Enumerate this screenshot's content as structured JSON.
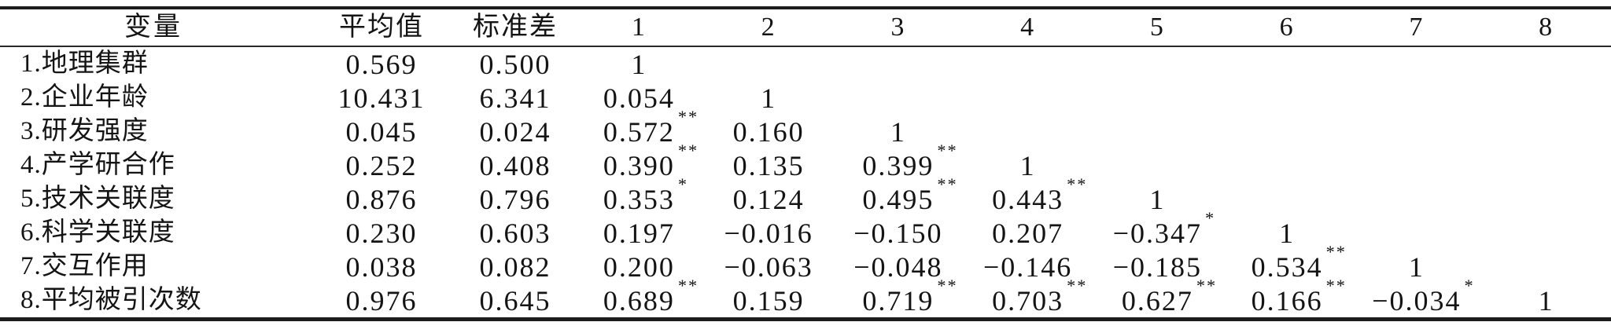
{
  "table": {
    "kind": "correlation-matrix",
    "columns": [
      "变量",
      "平均值",
      "标准差",
      "1",
      "2",
      "3",
      "4",
      "5",
      "6",
      "7",
      "8"
    ],
    "significance_markers": {
      "one_star": "*",
      "two_star": "**"
    },
    "rows": [
      {
        "label": "1.地理集群",
        "mean": "0.569",
        "sd": "0.500",
        "corr": [
          {
            "v": "1",
            "sig": ""
          }
        ]
      },
      {
        "label": "2.企业年龄",
        "mean": "10.431",
        "sd": "6.341",
        "corr": [
          {
            "v": "0.054",
            "sig": ""
          },
          {
            "v": "1",
            "sig": ""
          }
        ]
      },
      {
        "label": "3.研发强度",
        "mean": "0.045",
        "sd": "0.024",
        "corr": [
          {
            "v": "0.572",
            "sig": "**"
          },
          {
            "v": "0.160",
            "sig": ""
          },
          {
            "v": "1",
            "sig": ""
          }
        ]
      },
      {
        "label": "4.产学研合作",
        "mean": "0.252",
        "sd": "0.408",
        "corr": [
          {
            "v": "0.390",
            "sig": "**"
          },
          {
            "v": "0.135",
            "sig": ""
          },
          {
            "v": "0.399",
            "sig": "**"
          },
          {
            "v": "1",
            "sig": ""
          }
        ]
      },
      {
        "label": "5.技术关联度",
        "mean": "0.876",
        "sd": "0.796",
        "corr": [
          {
            "v": "0.353",
            "sig": "*"
          },
          {
            "v": "0.124",
            "sig": ""
          },
          {
            "v": "0.495",
            "sig": "**"
          },
          {
            "v": "0.443",
            "sig": "**"
          },
          {
            "v": "1",
            "sig": ""
          }
        ]
      },
      {
        "label": "6.科学关联度",
        "mean": "0.230",
        "sd": "0.603",
        "corr": [
          {
            "v": "0.197",
            "sig": ""
          },
          {
            "v": "−0.016",
            "sig": ""
          },
          {
            "v": "−0.150",
            "sig": ""
          },
          {
            "v": "0.207",
            "sig": ""
          },
          {
            "v": "−0.347",
            "sig": "*"
          },
          {
            "v": "1",
            "sig": ""
          }
        ]
      },
      {
        "label": "7.交互作用",
        "mean": "0.038",
        "sd": "0.082",
        "corr": [
          {
            "v": "0.200",
            "sig": ""
          },
          {
            "v": "−0.063",
            "sig": ""
          },
          {
            "v": "−0.048",
            "sig": ""
          },
          {
            "v": "−0.146",
            "sig": ""
          },
          {
            "v": "−0.185",
            "sig": ""
          },
          {
            "v": "0.534",
            "sig": "**"
          },
          {
            "v": "1",
            "sig": ""
          }
        ]
      },
      {
        "label": "8.平均被引次数",
        "mean": "0.976",
        "sd": "0.645",
        "corr": [
          {
            "v": "0.689",
            "sig": "**"
          },
          {
            "v": "0.159",
            "sig": ""
          },
          {
            "v": "0.719",
            "sig": "**"
          },
          {
            "v": "0.703",
            "sig": "**"
          },
          {
            "v": "0.627",
            "sig": "**"
          },
          {
            "v": "0.166",
            "sig": "**"
          },
          {
            "v": "−0.034",
            "sig": "*"
          },
          {
            "v": "1",
            "sig": ""
          }
        ]
      }
    ]
  }
}
